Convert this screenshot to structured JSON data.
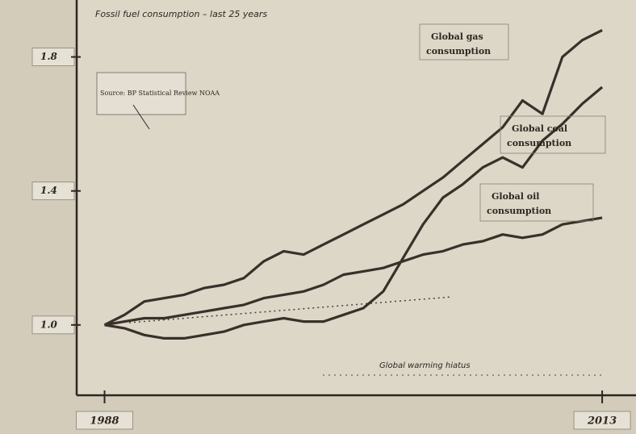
{
  "chart_data": {
    "type": "line",
    "title": "Fossil fuel consumption – last 25 years",
    "x": [
      1988,
      1989,
      1990,
      1991,
      1992,
      1993,
      1994,
      1995,
      1996,
      1997,
      1998,
      1999,
      2000,
      2001,
      2002,
      2003,
      2004,
      2005,
      2006,
      2007,
      2008,
      2009,
      2010,
      2011,
      2012,
      2013
    ],
    "series": [
      {
        "name": "Global gas consumption",
        "color": "#3a302a",
        "values": [
          1.0,
          1.03,
          1.07,
          1.08,
          1.09,
          1.11,
          1.12,
          1.14,
          1.19,
          1.22,
          1.21,
          1.24,
          1.27,
          1.3,
          1.33,
          1.36,
          1.4,
          1.44,
          1.49,
          1.54,
          1.59,
          1.67,
          1.63,
          1.8,
          1.85,
          1.88
        ]
      },
      {
        "name": "Global coal consumption",
        "color": "#3a302a",
        "values": [
          1.0,
          0.99,
          0.97,
          0.96,
          0.96,
          0.97,
          0.98,
          1.0,
          1.01,
          1.02,
          1.01,
          1.01,
          1.03,
          1.05,
          1.1,
          1.2,
          1.3,
          1.38,
          1.42,
          1.47,
          1.5,
          1.47,
          1.55,
          1.6,
          1.66,
          1.71
        ]
      },
      {
        "name": "Global oil consumption",
        "color": "#3a302a",
        "values": [
          1.0,
          1.01,
          1.02,
          1.02,
          1.03,
          1.04,
          1.05,
          1.06,
          1.08,
          1.09,
          1.1,
          1.12,
          1.15,
          1.16,
          1.17,
          1.19,
          1.21,
          1.22,
          1.24,
          1.25,
          1.27,
          1.26,
          1.27,
          1.3,
          1.31,
          1.32
        ]
      }
    ],
    "annotations": [
      "Source: BP Statistical Review NOAA",
      "Global warming hiatus"
    ],
    "xlim": [
      1986.6,
      2014.7
    ],
    "xticks": [
      1988,
      2013
    ],
    "ylim": [
      0.79,
      1.97
    ],
    "yticks": [
      {
        "value": 1,
        "label": "1.0"
      },
      1.4,
      1.8
    ]
  }
}
